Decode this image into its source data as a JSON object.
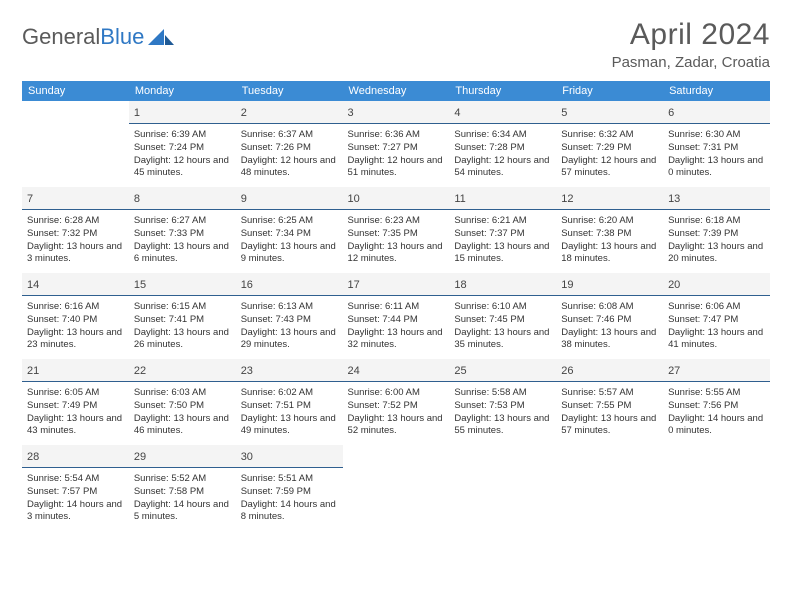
{
  "brand": {
    "part1": "General",
    "part2": "Blue"
  },
  "title": "April 2024",
  "location": "Pasman, Zadar, Croatia",
  "colors": {
    "header_bg": "#3b8bd4",
    "header_text": "#ffffff",
    "day_divider": "#2f5f8f",
    "daynum_bg": "#f4f4f4",
    "text": "#333333",
    "brand_gray": "#5a5a5a",
    "brand_blue": "#2f78c4"
  },
  "weekdays": [
    "Sunday",
    "Monday",
    "Tuesday",
    "Wednesday",
    "Thursday",
    "Friday",
    "Saturday"
  ],
  "weeks": [
    [
      null,
      {
        "n": "1",
        "sr": "Sunrise: 6:39 AM",
        "ss": "Sunset: 7:24 PM",
        "dl": "Daylight: 12 hours and 45 minutes."
      },
      {
        "n": "2",
        "sr": "Sunrise: 6:37 AM",
        "ss": "Sunset: 7:26 PM",
        "dl": "Daylight: 12 hours and 48 minutes."
      },
      {
        "n": "3",
        "sr": "Sunrise: 6:36 AM",
        "ss": "Sunset: 7:27 PM",
        "dl": "Daylight: 12 hours and 51 minutes."
      },
      {
        "n": "4",
        "sr": "Sunrise: 6:34 AM",
        "ss": "Sunset: 7:28 PM",
        "dl": "Daylight: 12 hours and 54 minutes."
      },
      {
        "n": "5",
        "sr": "Sunrise: 6:32 AM",
        "ss": "Sunset: 7:29 PM",
        "dl": "Daylight: 12 hours and 57 minutes."
      },
      {
        "n": "6",
        "sr": "Sunrise: 6:30 AM",
        "ss": "Sunset: 7:31 PM",
        "dl": "Daylight: 13 hours and 0 minutes."
      }
    ],
    [
      {
        "n": "7",
        "sr": "Sunrise: 6:28 AM",
        "ss": "Sunset: 7:32 PM",
        "dl": "Daylight: 13 hours and 3 minutes."
      },
      {
        "n": "8",
        "sr": "Sunrise: 6:27 AM",
        "ss": "Sunset: 7:33 PM",
        "dl": "Daylight: 13 hours and 6 minutes."
      },
      {
        "n": "9",
        "sr": "Sunrise: 6:25 AM",
        "ss": "Sunset: 7:34 PM",
        "dl": "Daylight: 13 hours and 9 minutes."
      },
      {
        "n": "10",
        "sr": "Sunrise: 6:23 AM",
        "ss": "Sunset: 7:35 PM",
        "dl": "Daylight: 13 hours and 12 minutes."
      },
      {
        "n": "11",
        "sr": "Sunrise: 6:21 AM",
        "ss": "Sunset: 7:37 PM",
        "dl": "Daylight: 13 hours and 15 minutes."
      },
      {
        "n": "12",
        "sr": "Sunrise: 6:20 AM",
        "ss": "Sunset: 7:38 PM",
        "dl": "Daylight: 13 hours and 18 minutes."
      },
      {
        "n": "13",
        "sr": "Sunrise: 6:18 AM",
        "ss": "Sunset: 7:39 PM",
        "dl": "Daylight: 13 hours and 20 minutes."
      }
    ],
    [
      {
        "n": "14",
        "sr": "Sunrise: 6:16 AM",
        "ss": "Sunset: 7:40 PM",
        "dl": "Daylight: 13 hours and 23 minutes."
      },
      {
        "n": "15",
        "sr": "Sunrise: 6:15 AM",
        "ss": "Sunset: 7:41 PM",
        "dl": "Daylight: 13 hours and 26 minutes."
      },
      {
        "n": "16",
        "sr": "Sunrise: 6:13 AM",
        "ss": "Sunset: 7:43 PM",
        "dl": "Daylight: 13 hours and 29 minutes."
      },
      {
        "n": "17",
        "sr": "Sunrise: 6:11 AM",
        "ss": "Sunset: 7:44 PM",
        "dl": "Daylight: 13 hours and 32 minutes."
      },
      {
        "n": "18",
        "sr": "Sunrise: 6:10 AM",
        "ss": "Sunset: 7:45 PM",
        "dl": "Daylight: 13 hours and 35 minutes."
      },
      {
        "n": "19",
        "sr": "Sunrise: 6:08 AM",
        "ss": "Sunset: 7:46 PM",
        "dl": "Daylight: 13 hours and 38 minutes."
      },
      {
        "n": "20",
        "sr": "Sunrise: 6:06 AM",
        "ss": "Sunset: 7:47 PM",
        "dl": "Daylight: 13 hours and 41 minutes."
      }
    ],
    [
      {
        "n": "21",
        "sr": "Sunrise: 6:05 AM",
        "ss": "Sunset: 7:49 PM",
        "dl": "Daylight: 13 hours and 43 minutes."
      },
      {
        "n": "22",
        "sr": "Sunrise: 6:03 AM",
        "ss": "Sunset: 7:50 PM",
        "dl": "Daylight: 13 hours and 46 minutes."
      },
      {
        "n": "23",
        "sr": "Sunrise: 6:02 AM",
        "ss": "Sunset: 7:51 PM",
        "dl": "Daylight: 13 hours and 49 minutes."
      },
      {
        "n": "24",
        "sr": "Sunrise: 6:00 AM",
        "ss": "Sunset: 7:52 PM",
        "dl": "Daylight: 13 hours and 52 minutes."
      },
      {
        "n": "25",
        "sr": "Sunrise: 5:58 AM",
        "ss": "Sunset: 7:53 PM",
        "dl": "Daylight: 13 hours and 55 minutes."
      },
      {
        "n": "26",
        "sr": "Sunrise: 5:57 AM",
        "ss": "Sunset: 7:55 PM",
        "dl": "Daylight: 13 hours and 57 minutes."
      },
      {
        "n": "27",
        "sr": "Sunrise: 5:55 AM",
        "ss": "Sunset: 7:56 PM",
        "dl": "Daylight: 14 hours and 0 minutes."
      }
    ],
    [
      {
        "n": "28",
        "sr": "Sunrise: 5:54 AM",
        "ss": "Sunset: 7:57 PM",
        "dl": "Daylight: 14 hours and 3 minutes."
      },
      {
        "n": "29",
        "sr": "Sunrise: 5:52 AM",
        "ss": "Sunset: 7:58 PM",
        "dl": "Daylight: 14 hours and 5 minutes."
      },
      {
        "n": "30",
        "sr": "Sunrise: 5:51 AM",
        "ss": "Sunset: 7:59 PM",
        "dl": "Daylight: 14 hours and 8 minutes."
      },
      null,
      null,
      null,
      null
    ]
  ]
}
